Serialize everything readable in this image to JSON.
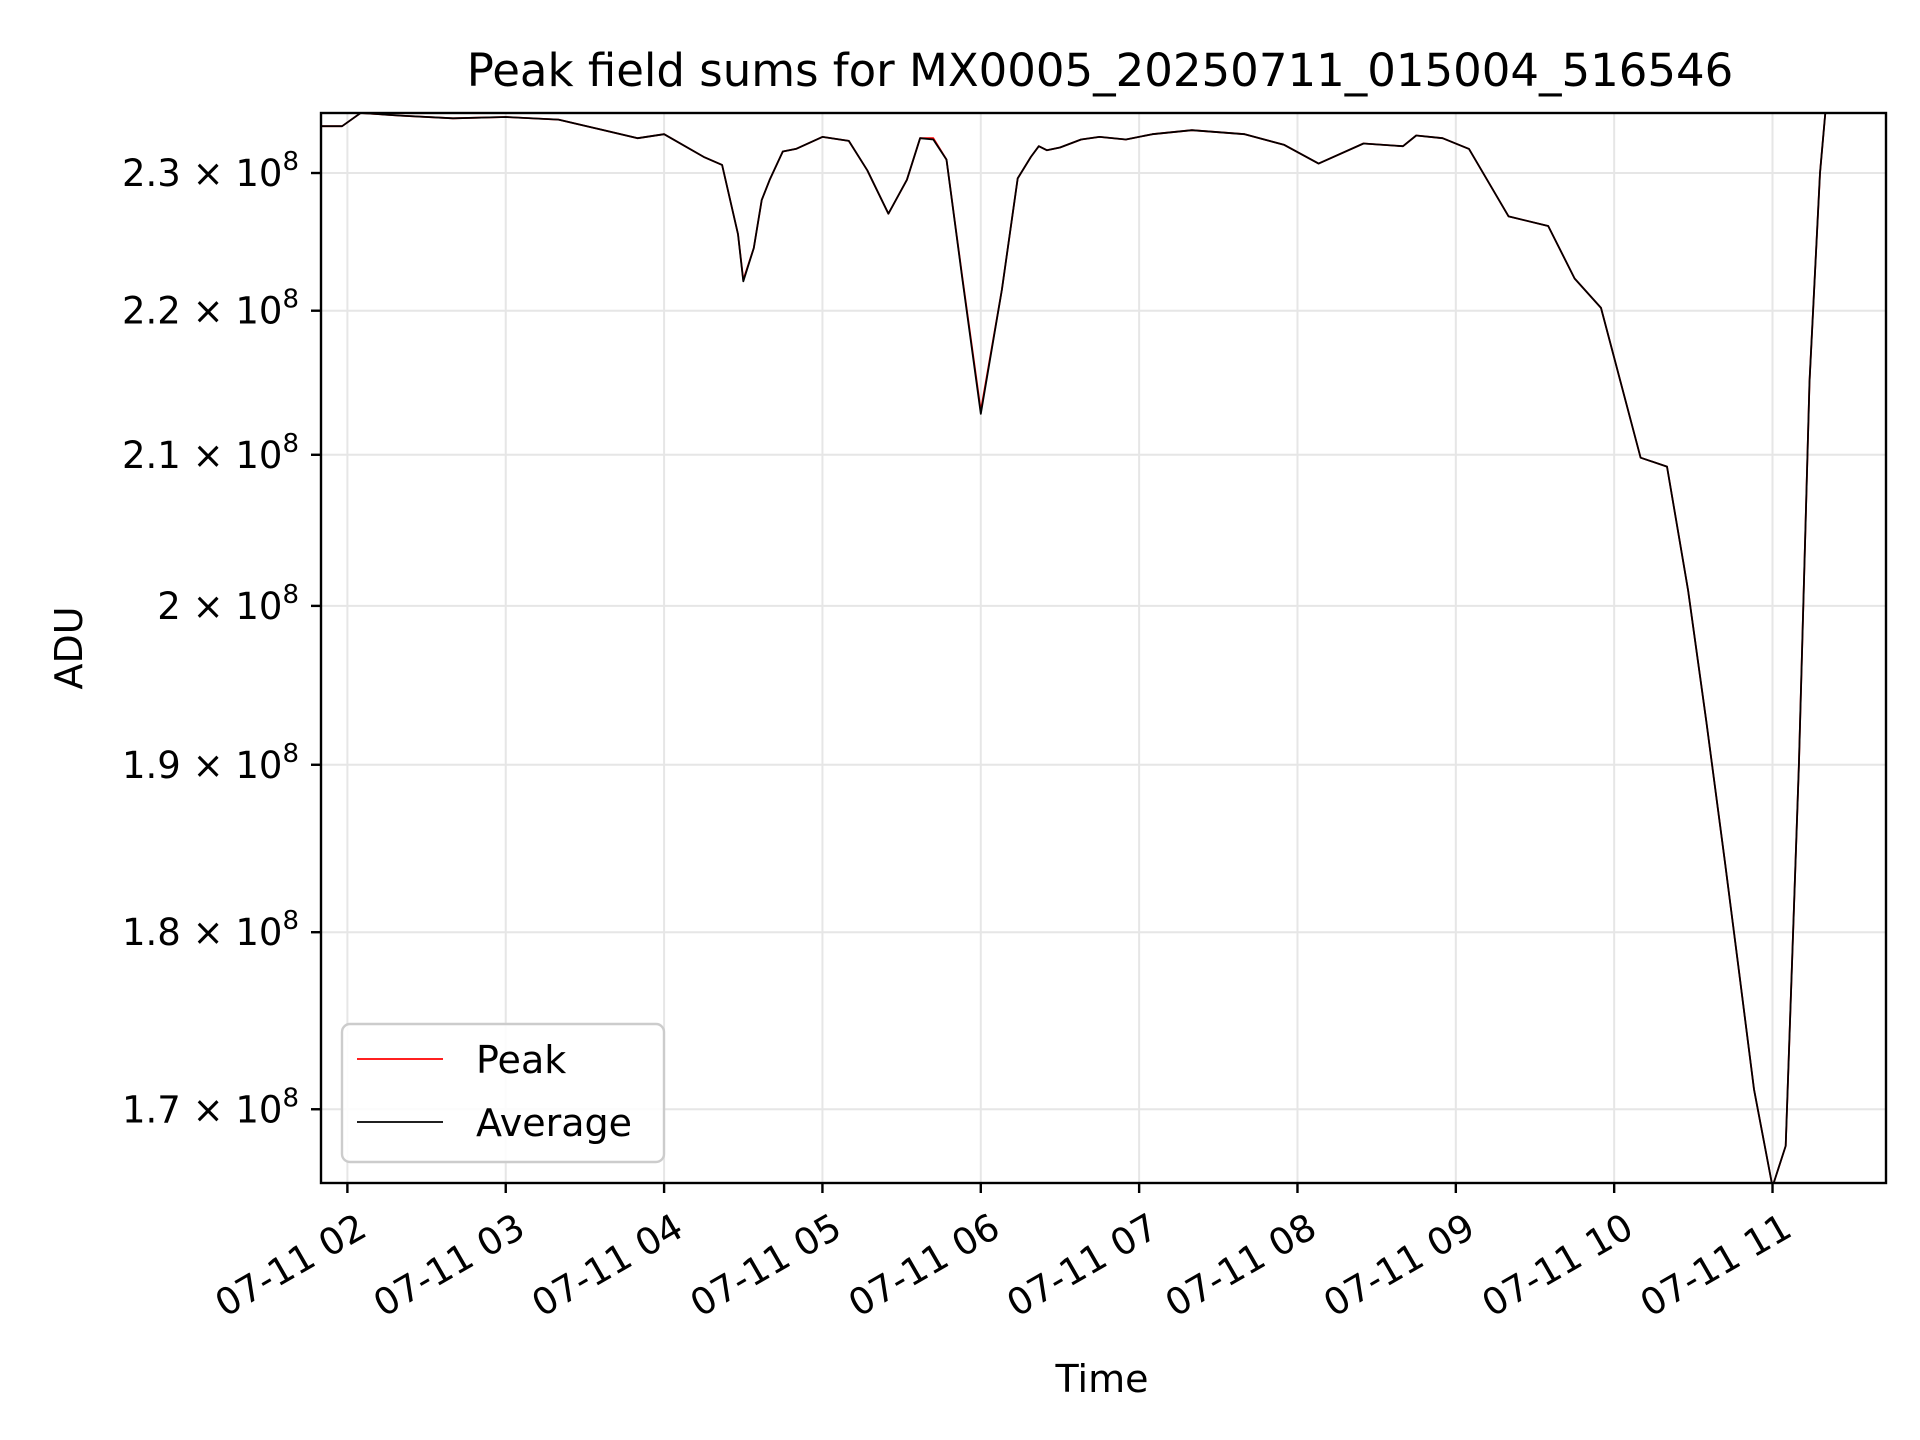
{
  "chart_data": {
    "type": "line",
    "title": "Peak field sums for MX0005_20250711_015004_516546",
    "xlabel": "Time",
    "ylabel": "ADU",
    "yscale": "log",
    "xlim": [
      "07-11 01:50",
      "07-11 11:43"
    ],
    "ylim": [
      166000000,
      234500000
    ],
    "grid": true,
    "legend_position": "lower left",
    "x_ticks": [
      "07-11 02",
      "07-11 03",
      "07-11 04",
      "07-11 05",
      "07-11 06",
      "07-11 07",
      "07-11 08",
      "07-11 09",
      "07-11 10",
      "07-11 11"
    ],
    "y_ticks": [
      {
        "value": 230000000,
        "mantissa": "2.3",
        "exponent": "8"
      },
      {
        "value": 220000000,
        "mantissa": "2.2",
        "exponent": "8"
      },
      {
        "value": 210000000,
        "mantissa": "2.1",
        "exponent": "8"
      },
      {
        "value": 200000000,
        "mantissa": "2",
        "exponent": "8"
      },
      {
        "value": 190000000,
        "mantissa": "1.9",
        "exponent": "8"
      },
      {
        "value": 180000000,
        "mantissa": "1.8",
        "exponent": "8"
      },
      {
        "value": 170000000,
        "mantissa": "1.7",
        "exponent": "8"
      }
    ],
    "tick_separator": "×",
    "tick_base": "10",
    "series": [
      {
        "name": "Peak",
        "color": "#ff0000",
        "x": [
          "07-11 01:50",
          "07-11 01:58",
          "07-11 02:05",
          "07-11 02:20",
          "07-11 02:40",
          "07-11 03:00",
          "07-11 03:20",
          "07-11 03:35",
          "07-11 03:50",
          "07-11 04:00",
          "07-11 04:15",
          "07-11 04:22",
          "07-11 04:28",
          "07-11 04:30",
          "07-11 04:34",
          "07-11 04:37",
          "07-11 04:40",
          "07-11 04:45",
          "07-11 04:50",
          "07-11 05:00",
          "07-11 05:10",
          "07-11 05:17",
          "07-11 05:25",
          "07-11 05:32",
          "07-11 05:37",
          "07-11 05:42",
          "07-11 05:47",
          "07-11 05:53",
          "07-11 06:00",
          "07-11 06:08",
          "07-11 06:14",
          "07-11 06:19",
          "07-11 06:22",
          "07-11 06:25",
          "07-11 06:30",
          "07-11 06:38",
          "07-11 06:45",
          "07-11 06:55",
          "07-11 07:05",
          "07-11 07:20",
          "07-11 07:40",
          "07-11 07:55",
          "07-11 08:08",
          "07-11 08:25",
          "07-11 08:40",
          "07-11 08:45",
          "07-11 08:55",
          "07-11 09:05",
          "07-11 09:20",
          "07-11 09:35",
          "07-11 09:45",
          "07-11 09:55",
          "07-11 10:10",
          "07-11 10:20",
          "07-11 10:28",
          "07-11 10:35",
          "07-11 10:42",
          "07-11 10:47",
          "07-11 10:53",
          "07-11 11:00",
          "07-11 11:05",
          "07-11 11:10",
          "07-11 11:14",
          "07-11 11:18",
          "07-11 11:20",
          "07-11 11:23",
          "07-11 11:26",
          "07-11 11:30",
          "07-11 11:35",
          "07-11 11:38",
          "07-11 11:43"
        ],
        "values": [
          233500000,
          233500000,
          234500000,
          234300000,
          234100000,
          234200000,
          234000000,
          233300000,
          232600000,
          232900000,
          231200000,
          230600000,
          225500000,
          222200000,
          224500000,
          228000000,
          229500000,
          231600000,
          231800000,
          232700000,
          232400000,
          230200000,
          227000000,
          229500000,
          232600000,
          232600000,
          231000000,
          222400000,
          213000000,
          221500000,
          229600000,
          231200000,
          232000000,
          231700000,
          231900000,
          232500000,
          232700000,
          232500000,
          232900000,
          233200000,
          232900000,
          232100000,
          230700000,
          232200000,
          232000000,
          232800000,
          232600000,
          231800000,
          226800000,
          226100000,
          222300000,
          220200000,
          209800000,
          209200000,
          201000000,
          192600000,
          184100000,
          178100000,
          171100000,
          165800000,
          168000000,
          190000000,
          215000000,
          230000000,
          234500000,
          234500000,
          234500000,
          234500000,
          234500000,
          234500000,
          234500000
        ]
      },
      {
        "name": "Average",
        "color": "#000000",
        "x": [
          "07-11 01:50",
          "07-11 01:58",
          "07-11 02:05",
          "07-11 02:20",
          "07-11 02:40",
          "07-11 03:00",
          "07-11 03:20",
          "07-11 03:35",
          "07-11 03:50",
          "07-11 04:00",
          "07-11 04:15",
          "07-11 04:22",
          "07-11 04:28",
          "07-11 04:30",
          "07-11 04:34",
          "07-11 04:37",
          "07-11 04:40",
          "07-11 04:45",
          "07-11 04:50",
          "07-11 05:00",
          "07-11 05:10",
          "07-11 05:17",
          "07-11 05:25",
          "07-11 05:32",
          "07-11 05:37",
          "07-11 05:42",
          "07-11 05:47",
          "07-11 05:53",
          "07-11 06:00",
          "07-11 06:08",
          "07-11 06:14",
          "07-11 06:19",
          "07-11 06:22",
          "07-11 06:25",
          "07-11 06:30",
          "07-11 06:38",
          "07-11 06:45",
          "07-11 06:55",
          "07-11 07:05",
          "07-11 07:20",
          "07-11 07:40",
          "07-11 07:55",
          "07-11 08:08",
          "07-11 08:25",
          "07-11 08:40",
          "07-11 08:45",
          "07-11 08:55",
          "07-11 09:05",
          "07-11 09:20",
          "07-11 09:35",
          "07-11 09:45",
          "07-11 09:55",
          "07-11 10:10",
          "07-11 10:20",
          "07-11 10:28",
          "07-11 10:35",
          "07-11 10:42",
          "07-11 10:47",
          "07-11 10:53",
          "07-11 11:00",
          "07-11 11:05",
          "07-11 11:10",
          "07-11 11:14",
          "07-11 11:18",
          "07-11 11:20",
          "07-11 11:23",
          "07-11 11:26",
          "07-11 11:30",
          "07-11 11:35",
          "07-11 11:38",
          "07-11 11:43"
        ],
        "values": [
          233500000,
          233500000,
          234500000,
          234300000,
          234100000,
          234200000,
          234000000,
          233300000,
          232600000,
          232900000,
          231200000,
          230600000,
          225500000,
          222100000,
          224500000,
          228000000,
          229500000,
          231600000,
          231800000,
          232700000,
          232400000,
          230200000,
          227000000,
          229500000,
          232600000,
          232500000,
          231000000,
          222300000,
          212800000,
          221500000,
          229600000,
          231200000,
          232000000,
          231700000,
          231900000,
          232500000,
          232700000,
          232500000,
          232900000,
          233200000,
          232900000,
          232100000,
          230700000,
          232200000,
          232000000,
          232800000,
          232600000,
          231800000,
          226800000,
          226100000,
          222300000,
          220200000,
          209800000,
          209200000,
          201000000,
          192600000,
          184100000,
          178100000,
          171100000,
          165800000,
          168000000,
          190000000,
          215000000,
          230000000,
          234500000,
          234500000,
          234500000,
          234500000,
          234500000,
          234500000,
          234500000
        ]
      }
    ]
  }
}
